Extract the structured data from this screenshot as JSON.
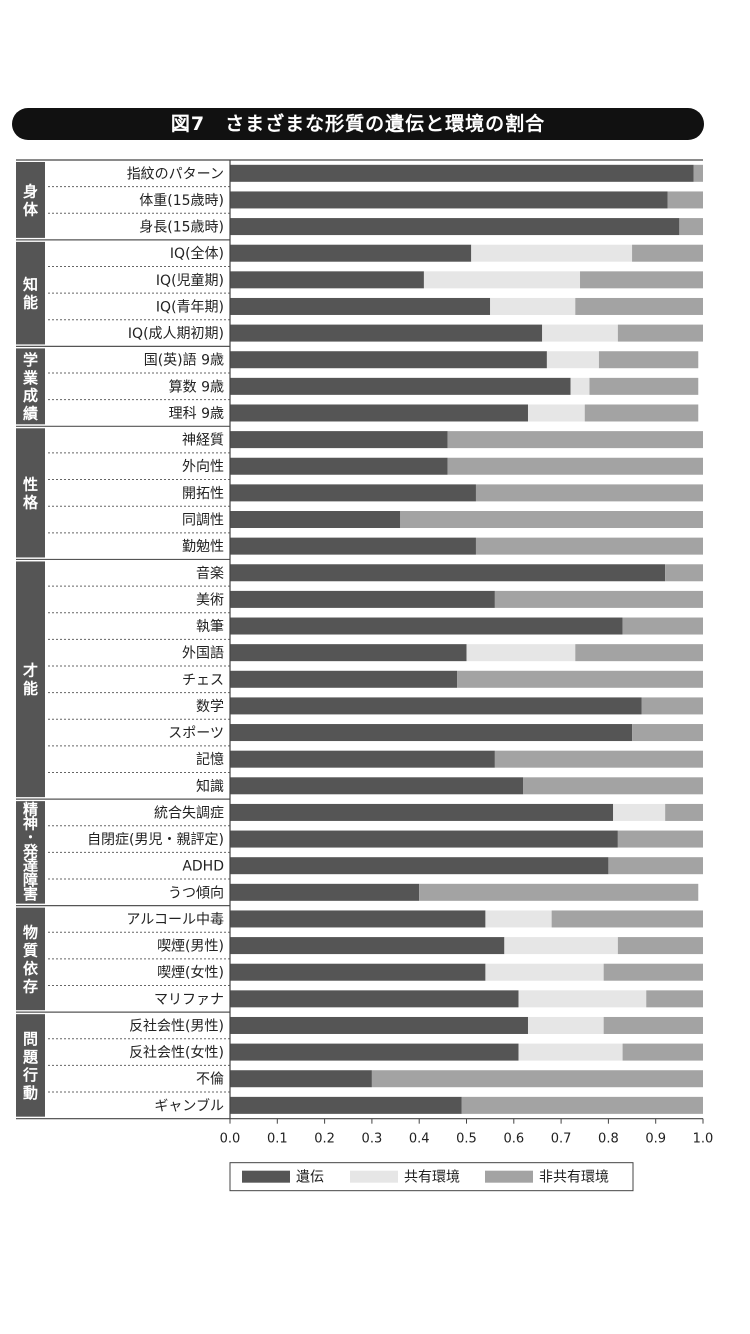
{
  "chart_data": {
    "type": "bar",
    "orientation": "horizontal",
    "stacked": true,
    "title": "図7　さまざまな形質の遺伝と環境の割合",
    "xlim": [
      0,
      1.0
    ],
    "xticks": [
      "0.0",
      "0.1",
      "0.2",
      "0.3",
      "0.4",
      "0.5",
      "0.6",
      "0.7",
      "0.8",
      "0.9",
      "1.0"
    ],
    "legend": {
      "position": "bottom",
      "entries": [
        "遺伝",
        "共有環境",
        "非共有環境"
      ]
    },
    "colors": {
      "genetic": "#555555",
      "shared": "#e6e6e6",
      "nonshared": "#a3a3a3",
      "group_bg": "#555555"
    },
    "groups": [
      {
        "name": "身体",
        "items": [
          {
            "label": "指紋のパターン",
            "values": [
              0.98,
              0.0,
              0.02
            ]
          },
          {
            "label": "体重(15歳時)",
            "values": [
              0.925,
              0.0,
              0.075
            ]
          },
          {
            "label": "身長(15歳時)",
            "values": [
              0.95,
              0.0,
              0.05
            ]
          }
        ]
      },
      {
        "name": "知能",
        "items": [
          {
            "label": "IQ(全体)",
            "values": [
              0.51,
              0.34,
              0.15
            ]
          },
          {
            "label": "IQ(児童期)",
            "values": [
              0.41,
              0.33,
              0.26
            ]
          },
          {
            "label": "IQ(青年期)",
            "values": [
              0.55,
              0.18,
              0.27
            ]
          },
          {
            "label": "IQ(成人期初期)",
            "values": [
              0.66,
              0.16,
              0.18
            ]
          }
        ]
      },
      {
        "name": "学業成績",
        "items": [
          {
            "label": "国(英)語 9歳",
            "values": [
              0.67,
              0.11,
              0.21
            ]
          },
          {
            "label": "算数 9歳",
            "values": [
              0.72,
              0.04,
              0.23
            ]
          },
          {
            "label": "理科 9歳",
            "values": [
              0.63,
              0.12,
              0.24
            ]
          }
        ]
      },
      {
        "name": "性格",
        "items": [
          {
            "label": "神経質",
            "values": [
              0.46,
              0.0,
              0.54
            ]
          },
          {
            "label": "外向性",
            "values": [
              0.46,
              0.0,
              0.54
            ]
          },
          {
            "label": "開拓性",
            "values": [
              0.52,
              0.0,
              0.48
            ]
          },
          {
            "label": "同調性",
            "values": [
              0.36,
              0.0,
              0.64
            ]
          },
          {
            "label": "勤勉性",
            "values": [
              0.52,
              0.0,
              0.48
            ]
          }
        ]
      },
      {
        "name": "才能",
        "items": [
          {
            "label": "音楽",
            "values": [
              0.92,
              0.0,
              0.08
            ]
          },
          {
            "label": "美術",
            "values": [
              0.56,
              0.0,
              0.44
            ]
          },
          {
            "label": "執筆",
            "values": [
              0.83,
              0.0,
              0.17
            ]
          },
          {
            "label": "外国語",
            "values": [
              0.5,
              0.23,
              0.27
            ]
          },
          {
            "label": "チェス",
            "values": [
              0.48,
              0.0,
              0.52
            ]
          },
          {
            "label": "数学",
            "values": [
              0.87,
              0.0,
              0.13
            ]
          },
          {
            "label": "スポーツ",
            "values": [
              0.85,
              0.0,
              0.15
            ]
          },
          {
            "label": "記憶",
            "values": [
              0.56,
              0.0,
              0.44
            ]
          },
          {
            "label": "知識",
            "values": [
              0.62,
              0.0,
              0.38
            ]
          }
        ]
      },
      {
        "name": "精神・発達障害",
        "items": [
          {
            "label": "統合失調症",
            "values": [
              0.81,
              0.11,
              0.08
            ]
          },
          {
            "label": "自閉症(男児・親評定)",
            "values": [
              0.82,
              0.0,
              0.18
            ]
          },
          {
            "label": "ADHD",
            "values": [
              0.8,
              0.0,
              0.2
            ]
          },
          {
            "label": "うつ傾向",
            "values": [
              0.4,
              0.0,
              0.59
            ]
          }
        ]
      },
      {
        "name": "物質依存",
        "items": [
          {
            "label": "アルコール中毒",
            "values": [
              0.54,
              0.14,
              0.32
            ]
          },
          {
            "label": "喫煙(男性)",
            "values": [
              0.58,
              0.24,
              0.18
            ]
          },
          {
            "label": "喫煙(女性)",
            "values": [
              0.54,
              0.25,
              0.21
            ]
          },
          {
            "label": "マリファナ",
            "values": [
              0.61,
              0.27,
              0.12
            ]
          }
        ]
      },
      {
        "name": "問題行動",
        "items": [
          {
            "label": "反社会性(男性)",
            "values": [
              0.63,
              0.16,
              0.21
            ]
          },
          {
            "label": "反社会性(女性)",
            "values": [
              0.61,
              0.22,
              0.17
            ]
          },
          {
            "label": "不倫",
            "values": [
              0.3,
              0.0,
              0.7
            ]
          },
          {
            "label": "ギャンブル",
            "values": [
              0.49,
              0.0,
              0.51
            ]
          }
        ]
      }
    ]
  }
}
